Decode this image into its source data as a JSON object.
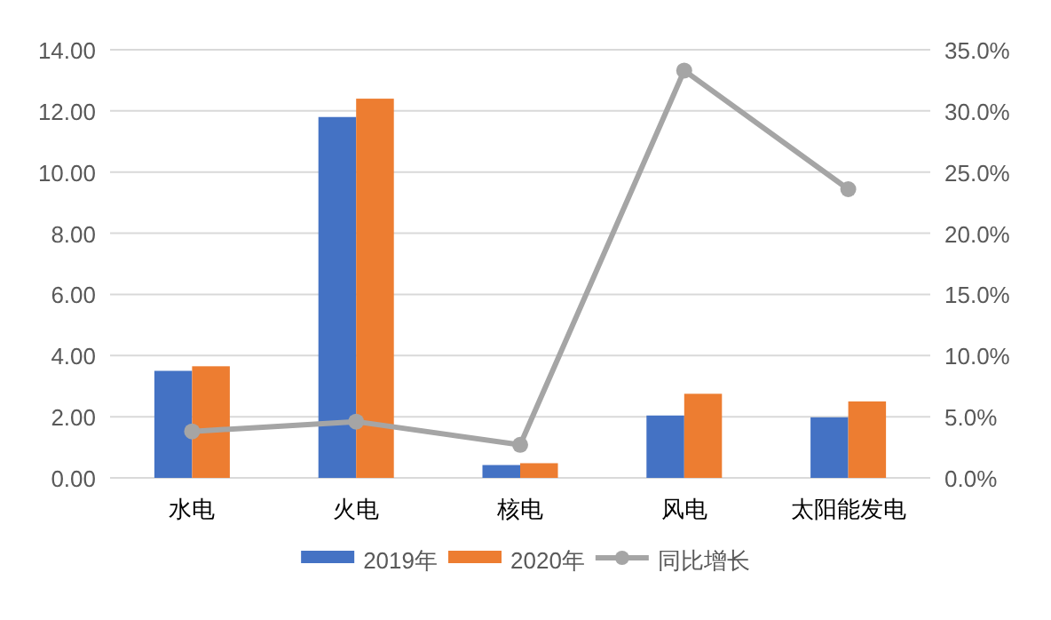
{
  "chart_data": {
    "type": "bar",
    "categories": [
      "水电",
      "火电",
      "核电",
      "风电",
      "太阳能发电"
    ],
    "series": [
      {
        "name": "2019年",
        "color": "#4472c4",
        "values": [
          3.5,
          11.8,
          0.42,
          2.04,
          1.98
        ]
      },
      {
        "name": "2020年",
        "color": "#ed7d31",
        "values": [
          3.65,
          12.4,
          0.48,
          2.75,
          2.5
        ]
      },
      {
        "name": "同比增长",
        "type": "line",
        "axis": "y2",
        "color": "#a5a5a5",
        "marker": "circle",
        "values": [
          3.8,
          4.6,
          2.7,
          33.3,
          23.6
        ]
      }
    ],
    "ylim": [
      0,
      14
    ],
    "yticks": [
      {
        "value": 0,
        "label": "0.00"
      },
      {
        "value": 2,
        "label": "2.00"
      },
      {
        "value": 4,
        "label": "4.00"
      },
      {
        "value": 6,
        "label": "6.00"
      },
      {
        "value": 8,
        "label": "8.00"
      },
      {
        "value": 10,
        "label": "10.00"
      },
      {
        "value": 12,
        "label": "12.00"
      },
      {
        "value": 14,
        "label": "14.00"
      }
    ],
    "y2lim": [
      0,
      35
    ],
    "y2ticks": [
      {
        "value": 0,
        "label": "0.0%"
      },
      {
        "value": 5,
        "label": "5.0%"
      },
      {
        "value": 10,
        "label": "10.0%"
      },
      {
        "value": 15,
        "label": "15.0%"
      },
      {
        "value": 20,
        "label": "20.0%"
      },
      {
        "value": 25,
        "label": "25.0%"
      },
      {
        "value": 30,
        "label": "30.0%"
      },
      {
        "value": 35,
        "label": "35.0%"
      }
    ],
    "grid": "y",
    "legend": "bottom"
  }
}
